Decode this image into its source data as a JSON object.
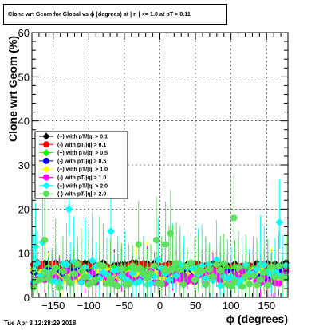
{
  "chart_data": {
    "type": "scatter",
    "title": "Clone wrt Geom for Global vs ϕ (degrees) at | η | <= 1.0 at pT > 0.11",
    "xlabel": "ϕ (degrees)",
    "ylabel": "Clone wrt Geom (%)",
    "xlim": [
      -180,
      180
    ],
    "ylim": [
      0,
      60
    ],
    "xticks": [
      -150,
      -100,
      -50,
      0,
      50,
      100,
      150
    ],
    "yticks": [
      0,
      10,
      20,
      30,
      40,
      50,
      60
    ],
    "grid": true,
    "legend_position": "left-middle",
    "n_points_per_series": 70,
    "series": [
      {
        "name": "(+) with pT/|q| > 0.1",
        "color": "#000000",
        "marker": "diamond",
        "mean": 7.3,
        "spread": 0.6,
        "err_lo": 1.0,
        "err_hi": 1.8,
        "highlights": []
      },
      {
        "name": "(-) with pT/|q| > 0.1",
        "color": "#ff0000",
        "marker": "circle",
        "mean": 6.8,
        "spread": 0.7,
        "err_lo": 1.0,
        "err_hi": 2.0,
        "highlights": []
      },
      {
        "name": "(+) with pT/|q| > 0.5",
        "color": "#00ff00",
        "marker": "diamond",
        "mean": 5.8,
        "spread": 1.0,
        "err_lo": 2.0,
        "err_hi": 3.5,
        "highlights": []
      },
      {
        "name": "(-) with pT/|q| > 0.5",
        "color": "#0000ff",
        "marker": "circle",
        "mean": 5.3,
        "spread": 1.0,
        "err_lo": 2.0,
        "err_hi": 3.5,
        "highlights": []
      },
      {
        "name": "(+) with pT/|q| > 1.0",
        "color": "#ffff00",
        "marker": "diamond",
        "mean": 4.9,
        "spread": 1.4,
        "err_lo": 2.5,
        "err_hi": 4.5,
        "highlights": []
      },
      {
        "name": "(-) with pT/|q| > 1.0",
        "color": "#ff00ff",
        "marker": "circle",
        "mean": 4.6,
        "spread": 1.5,
        "err_lo": 2.5,
        "err_hi": 4.5,
        "highlights": []
      },
      {
        "name": "(+) with pT/|q| > 2.0",
        "color": "#00ffff",
        "marker": "diamond",
        "mean": 5.5,
        "spread": 3.0,
        "err_lo": 4.0,
        "err_hi": 7.0,
        "highlights": [
          {
            "x": -175,
            "y": 11.5
          },
          {
            "x": -165,
            "y": 12.5
          },
          {
            "x": -128,
            "y": 20.0
          },
          {
            "x": -69,
            "y": 15.0
          },
          {
            "x": 168,
            "y": 17.0
          }
        ]
      },
      {
        "name": "(-) with pT/|q| > 2.0",
        "color": "#5ae05a",
        "marker": "circle",
        "mean": 5.0,
        "spread": 2.8,
        "err_lo": 4.0,
        "err_hi": 7.0,
        "highlights": [
          {
            "x": -162,
            "y": 13.0
          },
          {
            "x": -5,
            "y": 13.0
          },
          {
            "x": -30,
            "y": 12.0
          },
          {
            "x": 15,
            "y": 14.5
          },
          {
            "x": 104,
            "y": 18.0
          },
          {
            "x": 8,
            "y": 12.0
          }
        ]
      }
    ]
  },
  "footer": {
    "timestamp": "Tue Apr  3 12:28:29 2018"
  }
}
